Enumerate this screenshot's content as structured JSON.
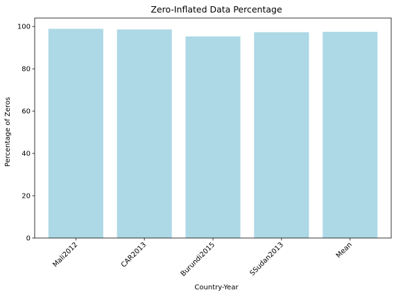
{
  "chart_data": {
    "type": "bar",
    "title": "Zero-Inflated Data Percentage",
    "xlabel": "Country-Year",
    "ylabel": "Percentage of Zeros",
    "categories": [
      "Mali2012",
      "CAR2013",
      "Burundi2015",
      "SSudan2013",
      "Mean"
    ],
    "values": [
      98.9,
      98.6,
      95.3,
      97.3,
      97.5
    ],
    "ylim": [
      0,
      104
    ],
    "yticks": [
      0,
      20,
      40,
      60,
      80,
      100
    ],
    "bar_color": "#add8e6",
    "grid": false,
    "legend": "none"
  }
}
